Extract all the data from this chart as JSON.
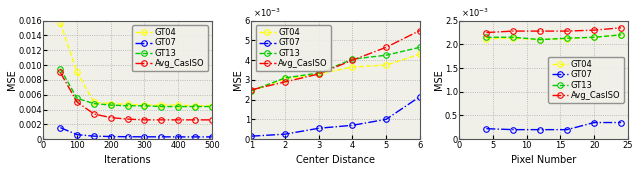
{
  "plot1": {
    "xlabel": "Iterations",
    "ylabel": "MSE",
    "xlim": [
      0,
      500
    ],
    "ylim": [
      0,
      0.016
    ],
    "yticks": [
      0,
      0.002,
      0.004,
      0.006,
      0.008,
      0.01,
      0.012,
      0.014,
      0.016
    ],
    "xticks": [
      0,
      100,
      200,
      300,
      400,
      500
    ],
    "series": {
      "GT04": {
        "x": [
          50,
          100,
          150,
          200,
          250,
          300,
          350,
          400,
          450,
          500
        ],
        "y": [
          0.0157,
          0.009,
          0.005,
          0.0048,
          0.0047,
          0.0046,
          0.0046,
          0.0046,
          0.0045,
          0.0045
        ],
        "color": "#ffff00",
        "linestyle": "--"
      },
      "GT07": {
        "x": [
          50,
          100,
          150,
          200,
          250,
          300,
          350,
          400,
          450,
          500
        ],
        "y": [
          0.00155,
          0.0006,
          0.0004,
          0.00035,
          0.00032,
          0.00031,
          0.00031,
          0.0003,
          0.0003,
          0.0003
        ],
        "color": "#0000ff",
        "linestyle": "-."
      },
      "GT13": {
        "x": [
          50,
          100,
          150,
          200,
          250,
          300,
          350,
          400,
          450,
          500
        ],
        "y": [
          0.0095,
          0.0055,
          0.0048,
          0.0046,
          0.0045,
          0.0045,
          0.0044,
          0.0044,
          0.0044,
          0.0044
        ],
        "color": "#00cc00",
        "linestyle": "--"
      },
      "Avg_CasISO": {
        "x": [
          50,
          100,
          150,
          200,
          250,
          300,
          350,
          400,
          450,
          500
        ],
        "y": [
          0.009,
          0.005,
          0.0034,
          0.0029,
          0.0027,
          0.0026,
          0.0026,
          0.0026,
          0.0026,
          0.0026
        ],
        "color": "#ff0000",
        "linestyle": "-."
      }
    }
  },
  "plot2": {
    "xlabel": "Center Distance",
    "ylabel": "MSE",
    "xlim": [
      1,
      6
    ],
    "ylim": [
      0,
      0.006
    ],
    "yticks": [
      0,
      0.001,
      0.002,
      0.003,
      0.004,
      0.005,
      0.006
    ],
    "xticks": [
      1,
      2,
      3,
      4,
      5,
      6
    ],
    "scale_label": "x10^{-3}",
    "series": {
      "GT04": {
        "x": [
          1,
          2,
          3,
          4,
          5,
          6
        ],
        "y": [
          0.00245,
          0.00305,
          0.0033,
          0.00365,
          0.00375,
          0.0043
        ],
        "color": "#ffff00",
        "linestyle": "--"
      },
      "GT07": {
        "x": [
          1,
          2,
          3,
          4,
          5,
          6
        ],
        "y": [
          0.00015,
          0.00025,
          0.00055,
          0.0007,
          0.001,
          0.00215
        ],
        "color": "#0000ff",
        "linestyle": "-."
      },
      "GT13": {
        "x": [
          1,
          2,
          3,
          4,
          5,
          6
        ],
        "y": [
          0.00245,
          0.0031,
          0.00335,
          0.00405,
          0.00425,
          0.00465
        ],
        "color": "#00cc00",
        "linestyle": "--"
      },
      "Avg_CasISO": {
        "x": [
          1,
          2,
          3,
          4,
          5,
          6
        ],
        "y": [
          0.0025,
          0.0029,
          0.0033,
          0.004,
          0.00465,
          0.0055
        ],
        "color": "#ff0000",
        "linestyle": "-."
      }
    }
  },
  "plot3": {
    "xlabel": "Pixel Number",
    "ylabel": "MSE",
    "xlim": [
      0,
      25
    ],
    "ylim": [
      0,
      0.0025
    ],
    "yticks": [
      0,
      0.0005,
      0.001,
      0.0015,
      0.002,
      0.0025
    ],
    "xticks": [
      0,
      5,
      10,
      15,
      20,
      25
    ],
    "scale_label": "x10^{-3}",
    "series": {
      "GT04": {
        "x": [
          4,
          8,
          12,
          16,
          20,
          24
        ],
        "y": [
          0.00212,
          0.00213,
          0.0021,
          0.00212,
          0.00215,
          0.0022
        ],
        "color": "#ffff00",
        "linestyle": "--"
      },
      "GT07": {
        "x": [
          4,
          8,
          12,
          16,
          20,
          24
        ],
        "y": [
          0.00022,
          0.0002,
          0.0002,
          0.0002,
          0.00035,
          0.00035
        ],
        "color": "#0000ff",
        "linestyle": "-."
      },
      "GT13": {
        "x": [
          4,
          8,
          12,
          16,
          20,
          24
        ],
        "y": [
          0.00215,
          0.00215,
          0.0021,
          0.00213,
          0.00215,
          0.0022
        ],
        "color": "#00cc00",
        "linestyle": "--"
      },
      "Avg_CasISO": {
        "x": [
          4,
          8,
          12,
          16,
          20,
          24
        ],
        "y": [
          0.00225,
          0.00228,
          0.00228,
          0.00228,
          0.0023,
          0.00235
        ],
        "color": "#ff0000",
        "linestyle": "-."
      }
    }
  },
  "legend_order": [
    "GT04",
    "GT07",
    "GT13",
    "Avg_CasISO"
  ],
  "marker": "o",
  "markersize": 4,
  "linewidth": 1.0,
  "fontsize_label": 7,
  "fontsize_tick": 6,
  "fontsize_legend": 6,
  "bg_color": "#f0f0e8"
}
